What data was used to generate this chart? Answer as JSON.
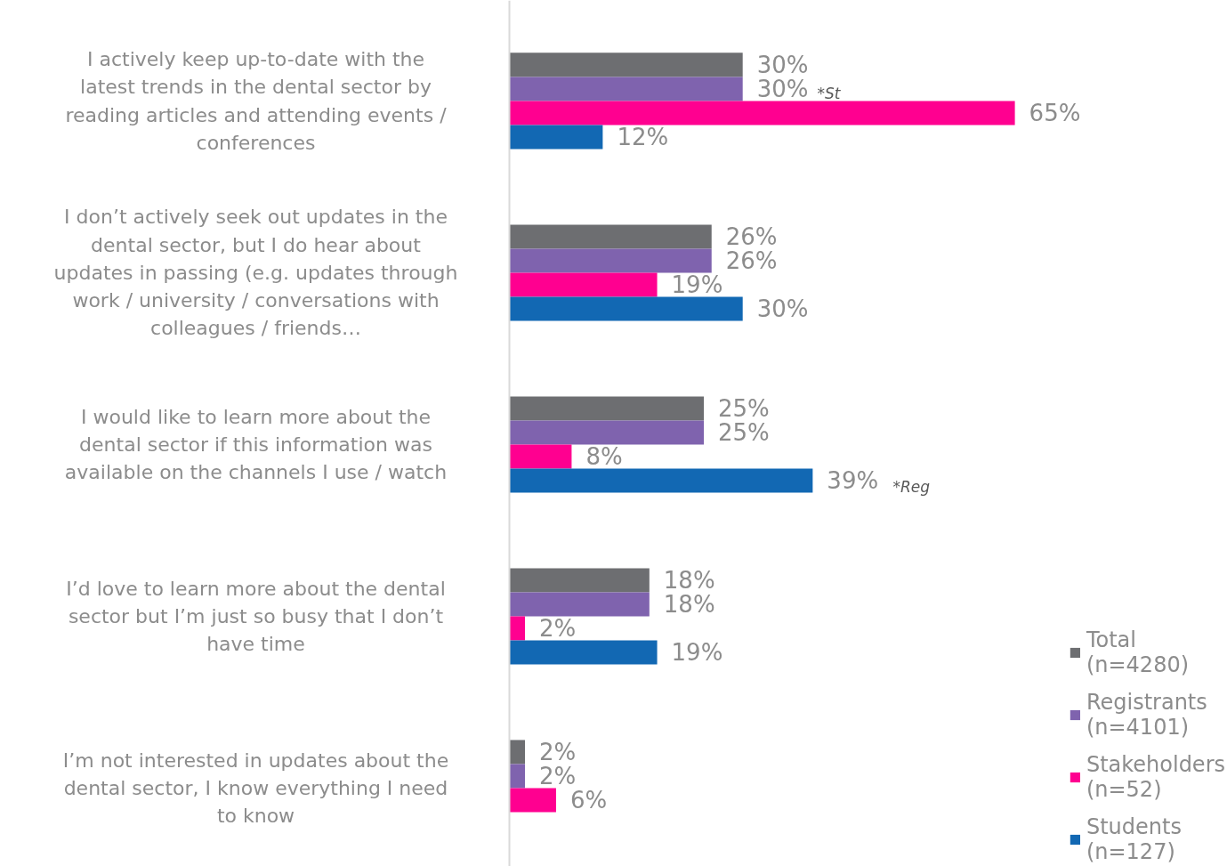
{
  "chart_data": {
    "type": "bar",
    "orientation": "horizontal",
    "legend": "bottom right",
    "grid": false,
    "categories": [
      "I actively keep up-to-date with the latest trends in the dental sector by reading articles and attending events / conferences",
      "I don’t actively seek out updates in the dental sector, but I do hear about updates in passing (e.g. updates through work / university / conversations with colleagues / friends…",
      "I would like to learn more about the dental sector if this information was available on the channels I use / watch",
      "I’d love to learn more about the dental sector but I’m just so busy that I don’t have time",
      "I’m not interested in updates about the dental sector, I know everything I need to know"
    ],
    "series": [
      {
        "name": "Total (n=4280)",
        "color": "#6d6e71",
        "values": [
          30,
          26,
          25,
          18,
          2
        ],
        "value_labels": [
          "30%",
          "26%",
          "25%",
          "18%",
          "2%"
        ]
      },
      {
        "name": "Registrants (n=4101)",
        "color": "#7f63ae",
        "values": [
          30,
          26,
          25,
          18,
          2
        ],
        "value_labels": [
          "30%",
          "26%",
          "25%",
          "18%",
          "2%"
        ]
      },
      {
        "name": "Stakeholders (n=52)",
        "color": "#ff0090",
        "values": [
          65,
          19,
          8,
          2,
          6
        ],
        "value_labels": [
          "65%",
          "19%",
          "8%",
          "2%",
          "6%"
        ]
      },
      {
        "name": "Students (n=127)",
        "color": "#1268b3",
        "values": [
          12,
          30,
          39,
          19,
          null
        ],
        "value_labels": [
          "12%",
          "30%",
          "39%",
          "19%",
          null
        ]
      }
    ],
    "annotations": [
      "*St",
      "*Reg"
    ]
  }
}
